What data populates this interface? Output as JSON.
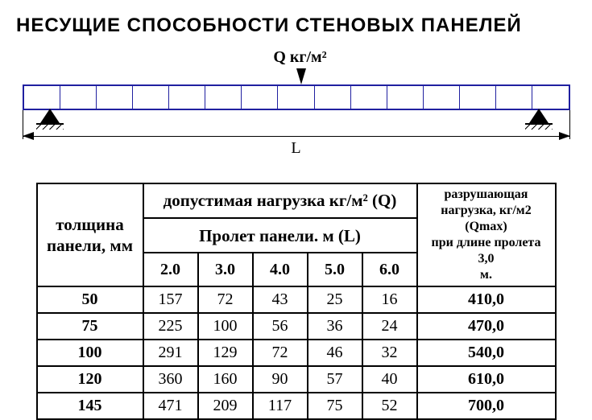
{
  "title": "НЕСУЩИЕ СПОСОБНОСТИ СТЕНОВЫХ ПАНЕЛЕЙ",
  "diagram": {
    "load_label": "Q кг/м²",
    "span_label": "L",
    "segments": 15,
    "beam_color": "#2020a0",
    "background_color": "#ffffff"
  },
  "table": {
    "header_thickness_l1": "толщина",
    "header_thickness_l2": "панели, мм",
    "header_load_group": "допустимая нагрузка кг/м² (Q)",
    "header_span_group": "Пролет панели. м (L)",
    "header_break_l1": "разрушающая",
    "header_break_l2": "нагрузка, кг/м2 (Qmax)",
    "header_break_l3": "при длине пролета 3,0",
    "header_break_l4": "м.",
    "span_headers": [
      "2.0",
      "3.0",
      "4.0",
      "5.0",
      "6.0"
    ],
    "rows": [
      {
        "thickness": "50",
        "vals": [
          "157",
          "72",
          "43",
          "25",
          "16"
        ],
        "break": "410,0"
      },
      {
        "thickness": "75",
        "vals": [
          "225",
          "100",
          "56",
          "36",
          "24"
        ],
        "break": "470,0"
      },
      {
        "thickness": "100",
        "vals": [
          "291",
          "129",
          "72",
          "46",
          "32"
        ],
        "break": "540,0"
      },
      {
        "thickness": "120",
        "vals": [
          "360",
          "160",
          "90",
          "57",
          "40"
        ],
        "break": "610,0"
      },
      {
        "thickness": "145",
        "vals": [
          "471",
          "209",
          "117",
          "75",
          "52"
        ],
        "break": "700,0"
      }
    ]
  }
}
